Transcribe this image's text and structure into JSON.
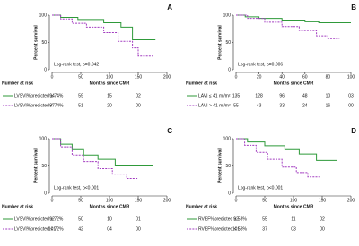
{
  "chart_data": [
    {
      "type": "line",
      "panel": "A",
      "ylabel": "Percent survival",
      "xlabel": "Months since CMR",
      "annotation": "Log-rank test, p=0.042",
      "risk_title": "Number at risk",
      "xlim": [
        0,
        200
      ],
      "xticks": [
        0,
        50,
        100,
        150,
        200
      ],
      "ylim": [
        0,
        100
      ],
      "yticks": [
        0,
        50,
        100
      ],
      "risk_times": [
        0,
        50,
        100,
        150
      ],
      "series": [
        {
          "name": "LVSVI%predicted ≥ 74%",
          "color": "#2f9a3a",
          "dashed": false,
          "x": [
            0,
            15,
            15,
            45,
            45,
            90,
            90,
            120,
            120,
            140,
            140,
            180
          ],
          "values": [
            100,
            100,
            96,
            96,
            92,
            92,
            86,
            86,
            78,
            78,
            55,
            55
          ],
          "at_risk": [
            94,
            59,
            15,
            2
          ],
          "at_risk_labels": [
            "94",
            "59",
            "15",
            "02"
          ]
        },
        {
          "name": "LVSVI%predicted < 74%",
          "color": "#a23cc0",
          "dashed": true,
          "x": [
            0,
            15,
            15,
            35,
            35,
            60,
            60,
            90,
            90,
            115,
            115,
            140,
            140,
            150,
            150,
            175
          ],
          "values": [
            100,
            100,
            93,
            93,
            85,
            85,
            78,
            78,
            68,
            68,
            52,
            52,
            40,
            40,
            25,
            25
          ],
          "at_risk": [
            87,
            51,
            20,
            0
          ],
          "at_risk_labels": [
            "87",
            "51",
            "20",
            "00"
          ]
        }
      ]
    },
    {
      "type": "line",
      "panel": "B",
      "ylabel": "Percent survival",
      "xlabel": "Months since CMR",
      "annotation": "Log-rank test, p=0.006",
      "risk_title": "Number at risk",
      "xlim": [
        0,
        100
      ],
      "xticks": [
        0,
        20,
        40,
        60,
        80,
        100
      ],
      "ylim": [
        0,
        100
      ],
      "yticks": [
        0,
        50,
        100
      ],
      "risk_times": [
        0,
        20,
        40,
        60,
        80,
        100
      ],
      "series": [
        {
          "name": "LAVI ≤ 41 ml/m²",
          "color": "#2f9a3a",
          "dashed": false,
          "x": [
            0,
            8,
            8,
            20,
            20,
            40,
            40,
            60,
            60,
            72,
            72,
            100
          ],
          "values": [
            100,
            100,
            97,
            97,
            94,
            94,
            91,
            91,
            88,
            88,
            86,
            86
          ],
          "at_risk": [
            135,
            128,
            96,
            48,
            10,
            3
          ],
          "at_risk_labels": [
            "135",
            "128",
            "96",
            "48",
            "10",
            "03"
          ]
        },
        {
          "name": "LAVI > 41 ml/m²",
          "color": "#a23cc0",
          "dashed": true,
          "x": [
            0,
            10,
            10,
            25,
            25,
            40,
            40,
            55,
            55,
            70,
            70,
            80,
            80,
            90
          ],
          "values": [
            100,
            100,
            94,
            94,
            87,
            87,
            79,
            79,
            72,
            72,
            62,
            62,
            57,
            57
          ],
          "at_risk": [
            55,
            43,
            33,
            24,
            16,
            0
          ],
          "at_risk_labels": [
            "55",
            "43",
            "33",
            "24",
            "16",
            "00"
          ]
        }
      ]
    },
    {
      "type": "line",
      "panel": "C",
      "ylabel": "Percent survival",
      "xlabel": "Months since CMR",
      "annotation": "Log-rank test, p<0.001",
      "risk_title": "Number at risk",
      "xlim": [
        0,
        200
      ],
      "xticks": [
        0,
        50,
        100,
        150,
        200
      ],
      "ylim": [
        0,
        100
      ],
      "yticks": [
        0,
        50,
        100
      ],
      "risk_times": [
        0,
        50,
        100,
        150
      ],
      "series": [
        {
          "name": "LVSVI%predicted ≥ 72%",
          "color": "#2f9a3a",
          "dashed": false,
          "x": [
            0,
            15,
            15,
            35,
            35,
            55,
            55,
            80,
            80,
            110,
            110,
            175
          ],
          "values": [
            100,
            100,
            90,
            90,
            80,
            80,
            70,
            70,
            62,
            62,
            50,
            50
          ],
          "at_risk": [
            92,
            50,
            10,
            1
          ],
          "at_risk_labels": [
            "92",
            "50",
            "10",
            "01"
          ]
        },
        {
          "name": "LVSVI%predicted < 72%",
          "color": "#a23cc0",
          "dashed": true,
          "x": [
            0,
            15,
            15,
            35,
            35,
            55,
            55,
            80,
            80,
            105,
            105,
            130,
            130,
            150
          ],
          "values": [
            100,
            100,
            85,
            85,
            70,
            70,
            58,
            58,
            45,
            45,
            35,
            35,
            27,
            27
          ],
          "at_risk": [
            101,
            42,
            4,
            0
          ],
          "at_risk_labels": [
            "101",
            "42",
            "04",
            "00"
          ]
        }
      ]
    },
    {
      "type": "line",
      "panel": "D",
      "ylabel": "Percent survival",
      "xlabel": "Months since CMR",
      "annotation": "Log-rank test, p<0.001",
      "risk_title": "Number at risk",
      "xlim": [
        0,
        200
      ],
      "xticks": [
        0,
        50,
        100,
        150,
        200
      ],
      "ylim": [
        0,
        100
      ],
      "yticks": [
        0,
        50,
        100
      ],
      "risk_times": [
        0,
        50,
        100,
        150
      ],
      "series": [
        {
          "name": "RVEF%predicted ≥ 58%",
          "color": "#2f9a3a",
          "dashed": false,
          "x": [
            0,
            20,
            20,
            50,
            50,
            85,
            85,
            110,
            110,
            140,
            140,
            175
          ],
          "values": [
            100,
            100,
            94,
            94,
            87,
            87,
            80,
            80,
            72,
            72,
            60,
            60
          ],
          "at_risk": [
            92,
            55,
            11,
            2
          ],
          "at_risk_labels": [
            "92",
            "55",
            "11",
            "02"
          ]
        },
        {
          "name": "RVEF%predicted < 58%",
          "color": "#a23cc0",
          "dashed": true,
          "x": [
            0,
            15,
            15,
            35,
            35,
            55,
            55,
            80,
            80,
            105,
            105,
            125,
            125,
            145
          ],
          "values": [
            100,
            100,
            88,
            88,
            75,
            75,
            62,
            62,
            48,
            48,
            38,
            38,
            30,
            30
          ],
          "at_risk": [
            101,
            37,
            3,
            0
          ],
          "at_risk_labels": [
            "101",
            "37",
            "03",
            "00"
          ]
        }
      ]
    }
  ]
}
